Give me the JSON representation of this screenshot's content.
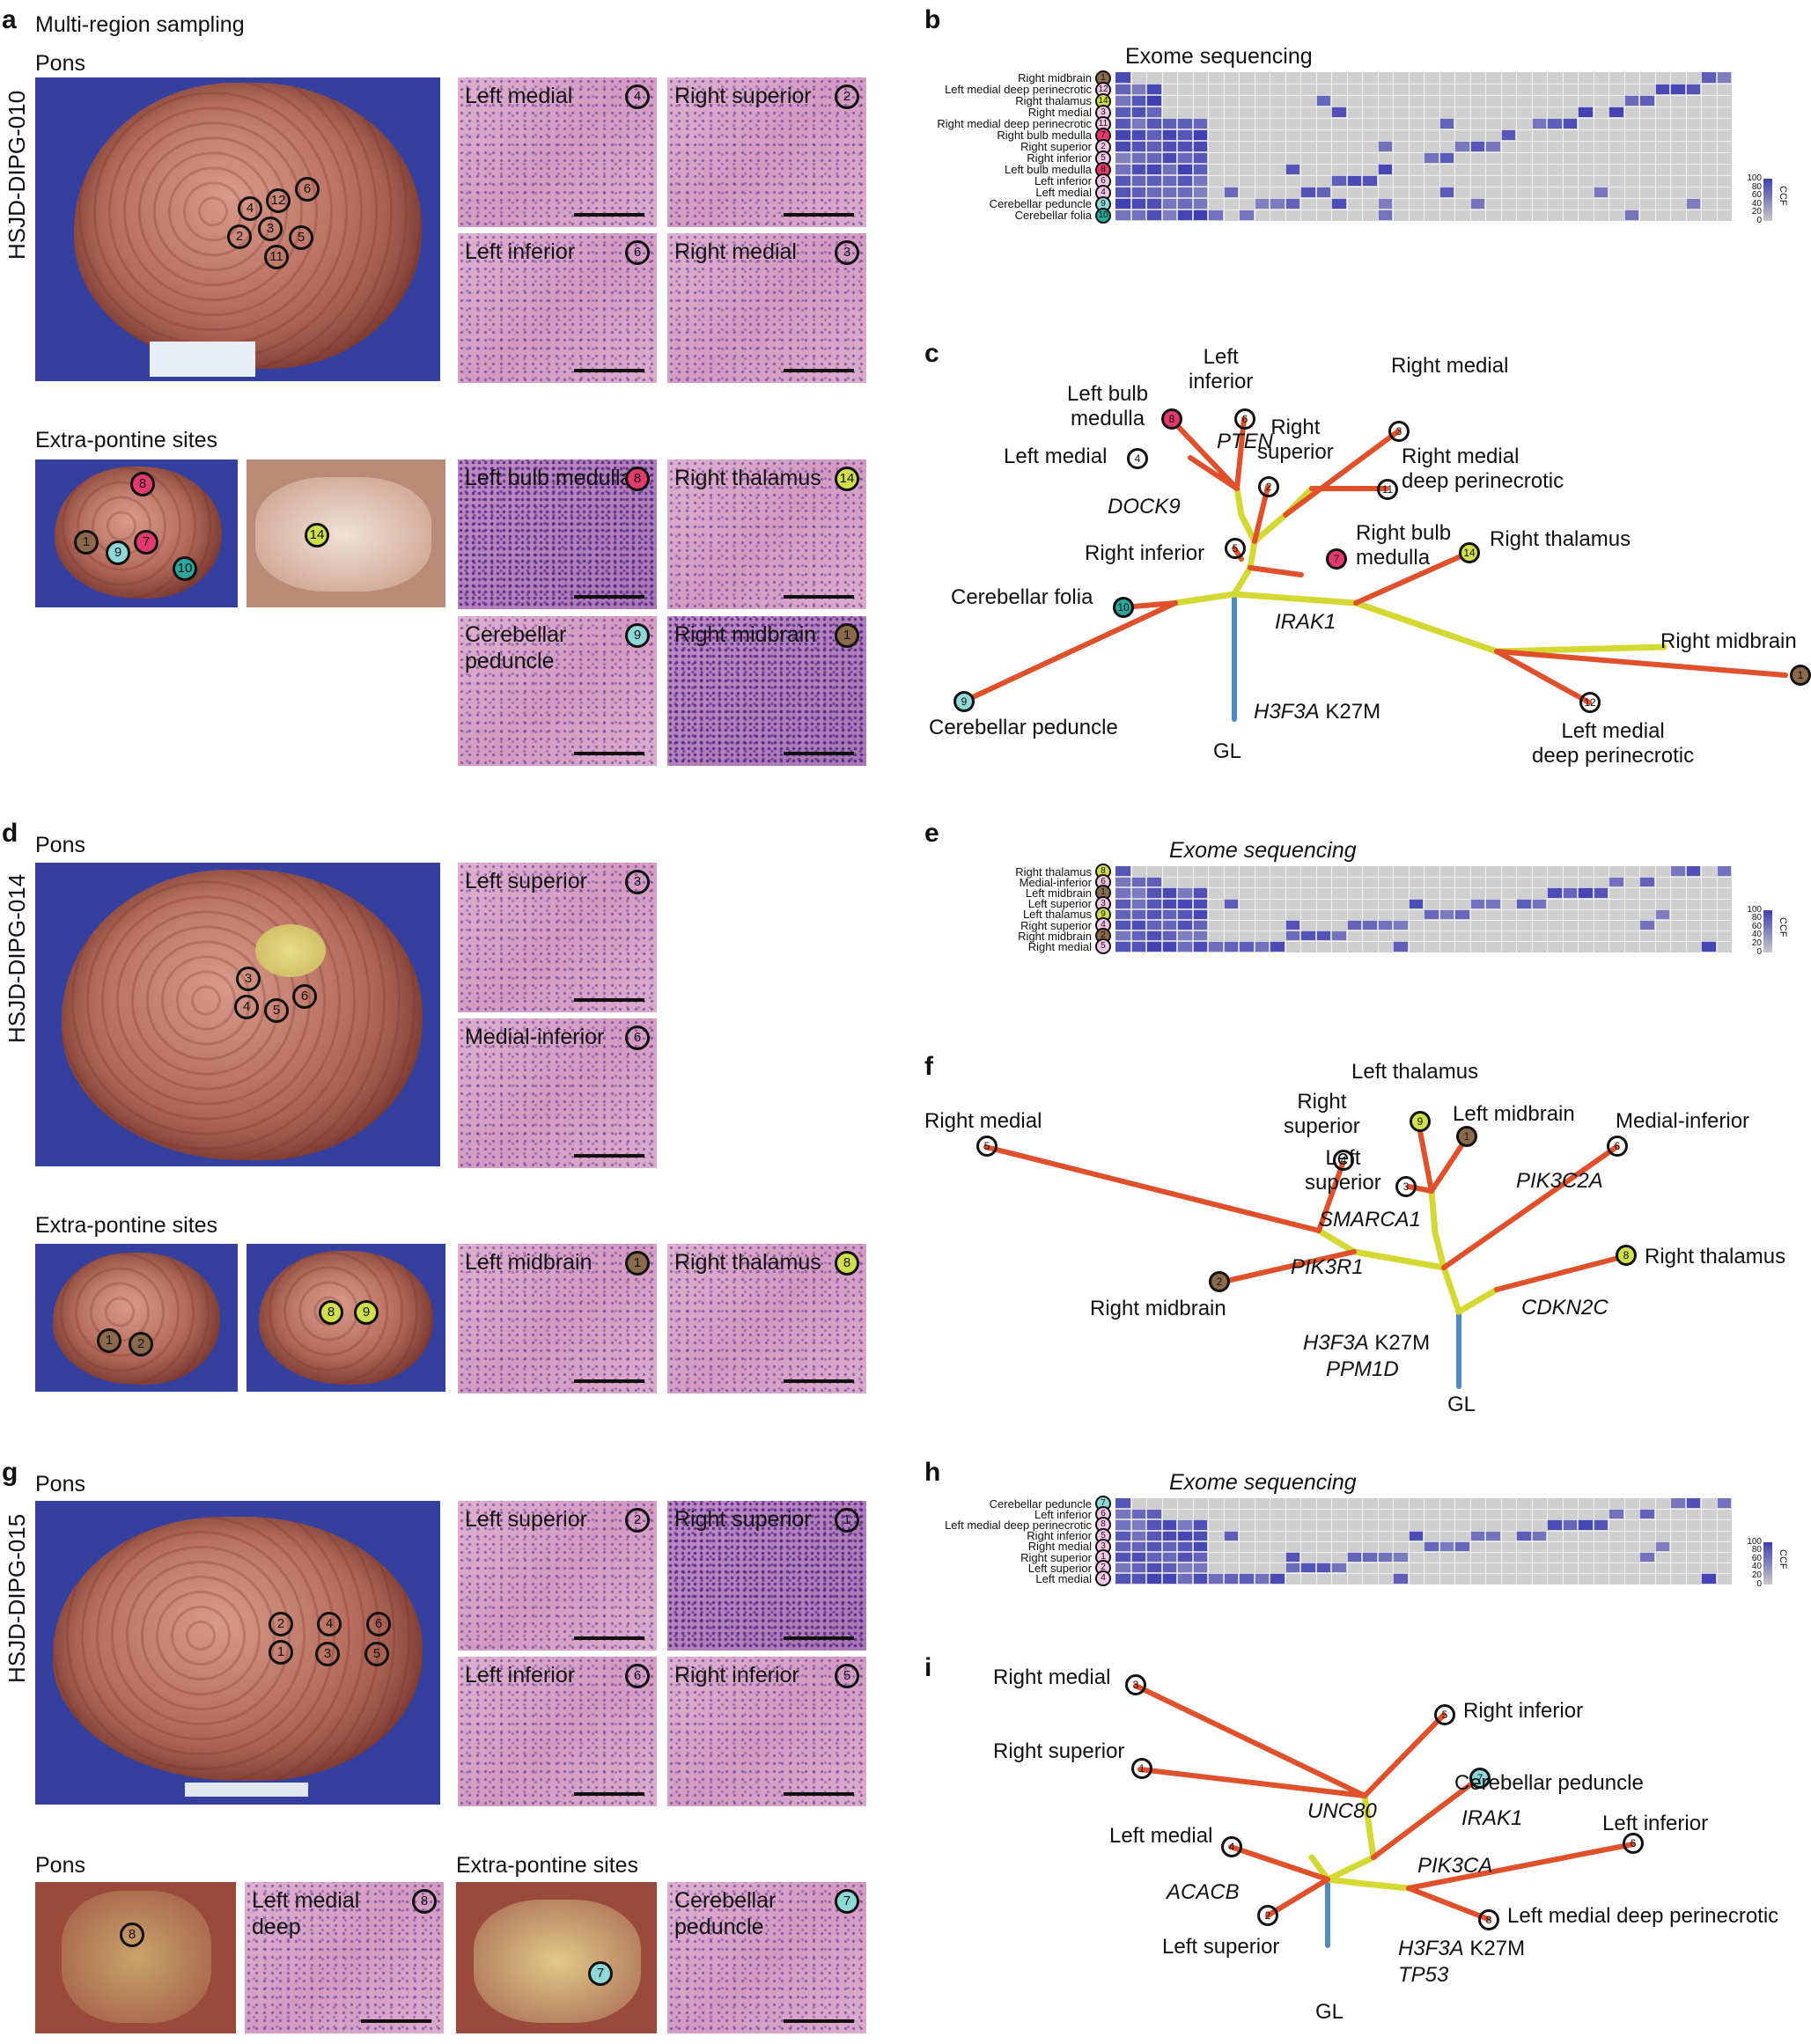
{
  "colors": {
    "branch_red": "#e0502a",
    "branch_yellow": "#d4d833",
    "trunk_blue": "#4f8ac0",
    "ccf_high": "#3f3fb3",
    "ccf_low": "#c8c8c8",
    "badge_pink": "#f4c6e6",
    "badge_magenta": "#e23a6c",
    "badge_brown": "#8a6a4a",
    "badge_green": "#cfe04a",
    "badge_cyan": "#8fd8d8",
    "badge_teal": "#2aa79b"
  },
  "panel_a": {
    "letter": "a",
    "title": "Multi-region sampling",
    "patient": "HSJD-DIPG-010",
    "pons_label": "Pons",
    "extra_label": "Extra-pontine sites",
    "histo": [
      {
        "label": "Left medial",
        "num": "4"
      },
      {
        "label": "Right superior",
        "num": "2"
      },
      {
        "label": "Left inferior",
        "num": "6"
      },
      {
        "label": "Right medial",
        "num": "3"
      },
      {
        "label": "Left bulb medulla",
        "num": "8"
      },
      {
        "label": "Right thalamus",
        "num": "14"
      },
      {
        "label": "Cerebellar peduncle",
        "num": "9"
      },
      {
        "label": "Right midbrain",
        "num": "1"
      }
    ],
    "brain_markers": [
      "4",
      "12",
      "6",
      "2",
      "3",
      "5",
      "11"
    ],
    "extra_markers": [
      "8",
      "1",
      "9",
      "7",
      "10",
      "14"
    ]
  },
  "panel_b": {
    "letter": "b",
    "title": "Exome sequencing",
    "legend_label": "CCF",
    "legend_ticks": [
      "100",
      "80",
      "60",
      "40",
      "20",
      "0"
    ],
    "rows": [
      {
        "name": "Right midbrain",
        "num": "1"
      },
      {
        "name": "Left medial deep perinecrotic",
        "num": "12"
      },
      {
        "name": "Right thalamus",
        "num": "14"
      },
      {
        "name": "Right medial",
        "num": "3"
      },
      {
        "name": "Right medial deep perinecrotic",
        "num": "11"
      },
      {
        "name": "Right bulb medulla",
        "num": "7"
      },
      {
        "name": "Right superior",
        "num": "2"
      },
      {
        "name": "Right inferior",
        "num": "5"
      },
      {
        "name": "Left bulb medulla",
        "num": "8"
      },
      {
        "name": "Left inferior",
        "num": "6"
      },
      {
        "name": "Left medial",
        "num": "4"
      },
      {
        "name": "Cerebellar peduncle",
        "num": "9"
      },
      {
        "name": "Cerebellar folia",
        "num": "10"
      }
    ]
  },
  "panel_c": {
    "letter": "c",
    "labels": {
      "left_inferior": "Left\ninferior",
      "left_bulb": "Left bulb\nmedulla",
      "pten": "PTEN",
      "right_superior": "Right\nsuperior",
      "right_medial": "Right medial",
      "left_medial": "Left medial",
      "right_medial_deep": "Right medial\ndeep perinecrotic",
      "dock9": "DOCK9",
      "right_inferior": "Right inferior",
      "right_bulb": "Right bulb\nmedulla",
      "right_thalamus": "Right thalamus",
      "cerebellar_folia": "Cerebellar folia",
      "irak1": "IRAK1",
      "right_midbrain": "Right midbrain",
      "h3f3a": "H3F3A",
      "k27m": " K27M",
      "cerebellar_peduncle": "Cerebellar peduncle",
      "gl": "GL",
      "left_medial_deep": "Left medial\ndeep perinecrotic"
    },
    "nums": {
      "n6": "6",
      "n8": "8",
      "n3": "3",
      "n4": "4",
      "n2": "2",
      "n11": "11",
      "n5": "5",
      "n7": "7",
      "n14": "14",
      "n10": "10",
      "n1": "1",
      "n9": "9",
      "n12": "12"
    }
  },
  "panel_d": {
    "letter": "d",
    "patient": "HSJD-DIPG-014",
    "pons_label": "Pons",
    "extra_label": "Extra-pontine sites",
    "histo": [
      {
        "label": "Left superior",
        "num": "3"
      },
      {
        "label": "Medial-inferior",
        "num": "6"
      },
      {
        "label": "Left midbrain",
        "num": "1"
      },
      {
        "label": "Right thalamus",
        "num": "8"
      }
    ],
    "brain_markers": [
      "3",
      "4",
      "5",
      "6"
    ],
    "extra_markers": [
      "1",
      "2",
      "8",
      "9"
    ]
  },
  "panel_e": {
    "letter": "e",
    "title": "Exome sequencing",
    "legend_label": "CCF",
    "legend_ticks": [
      "100",
      "80",
      "60",
      "40",
      "20",
      "0"
    ],
    "rows": [
      {
        "name": "Right thalamus",
        "num": "8"
      },
      {
        "name": "Medial-inferior",
        "num": "6"
      },
      {
        "name": "Left midbrain",
        "num": "1"
      },
      {
        "name": "Left superior",
        "num": "3"
      },
      {
        "name": "Left thalamus",
        "num": "9"
      },
      {
        "name": "Right superior",
        "num": "4"
      },
      {
        "name": "Right midbrain",
        "num": "2"
      },
      {
        "name": "Right medial",
        "num": "5"
      }
    ]
  },
  "panel_f": {
    "letter": "f",
    "labels": {
      "left_thalamus": "Left thalamus",
      "right_superior": "Right\nsuperior",
      "left_midbrain": "Left midbrain",
      "right_medial": "Right medial",
      "medial_inferior": "Medial-inferior",
      "left_superior": "Left\nsuperior",
      "pik3c2a": "PIK3C2A",
      "smarca1": "SMARCA1",
      "right_thalamus": "Right thalamus",
      "pik3r1": "PIK3R1",
      "right_midbrain": "Right midbrain",
      "cdkn2c": "CDKN2C",
      "h3f3a": "H3F3A",
      "k27m": " K27M",
      "ppm1d": "PPM1D",
      "gl": "GL"
    },
    "nums": {
      "n9": "9",
      "n4": "4",
      "n1": "1",
      "n5": "5",
      "n6": "6",
      "n3": "3",
      "n8": "8",
      "n2": "2"
    }
  },
  "panel_g": {
    "letter": "g",
    "patient": "HSJD-DIPG-015",
    "pons_label": "Pons",
    "pons_label2": "Pons",
    "extra_label": "Extra-pontine sites",
    "histo": [
      {
        "label": "Left superior",
        "num": "2"
      },
      {
        "label": "Right superior",
        "num": "1"
      },
      {
        "label": "Left inferior",
        "num": "6"
      },
      {
        "label": "Right inferior",
        "num": "5"
      },
      {
        "label": "Left medial\ndeep",
        "num": "8"
      },
      {
        "label": "Cerebellar\npeduncle",
        "num": "7"
      }
    ],
    "brain_markers": [
      "2",
      "4",
      "6",
      "1",
      "3",
      "5"
    ],
    "extra_markers": [
      "8",
      "7"
    ]
  },
  "panel_h": {
    "letter": "h",
    "title": "Exome sequencing",
    "legend_label": "CCF",
    "legend_ticks": [
      "100",
      "80",
      "60",
      "40",
      "20",
      "0"
    ],
    "rows": [
      {
        "name": "Cerebellar peduncle",
        "num": "7"
      },
      {
        "name": "Left inferior",
        "num": "6"
      },
      {
        "name": "Left medial deep perinecrotic",
        "num": "8"
      },
      {
        "name": "Right inferior",
        "num": "5"
      },
      {
        "name": "Right medial",
        "num": "3"
      },
      {
        "name": "Right superior",
        "num": "1"
      },
      {
        "name": "Left superior",
        "num": "2"
      },
      {
        "name": "Left medial",
        "num": "4"
      }
    ]
  },
  "panel_i": {
    "letter": "i",
    "labels": {
      "right_medial": "Right medial",
      "right_inferior": "Right inferior",
      "right_superior": "Right superior",
      "cerebellar_peduncle": "Cerebellar peduncle",
      "unc80": "UNC80",
      "irak1": "IRAK1",
      "left_medial": "Left medial",
      "left_inferior": "Left inferior",
      "pik3ca": "PIK3CA",
      "acacb": "ACACB",
      "left_medial_deep": "Left medial deep perinecrotic",
      "left_superior": "Left superior",
      "h3f3a": "H3F3A",
      "k27m": " K27M",
      "tp53": "TP53",
      "gl": "GL"
    },
    "nums": {
      "n3": "3",
      "n5": "5",
      "n1": "1",
      "n7": "7",
      "n4": "4",
      "n6": "6",
      "n8": "8",
      "n2": "2"
    }
  }
}
